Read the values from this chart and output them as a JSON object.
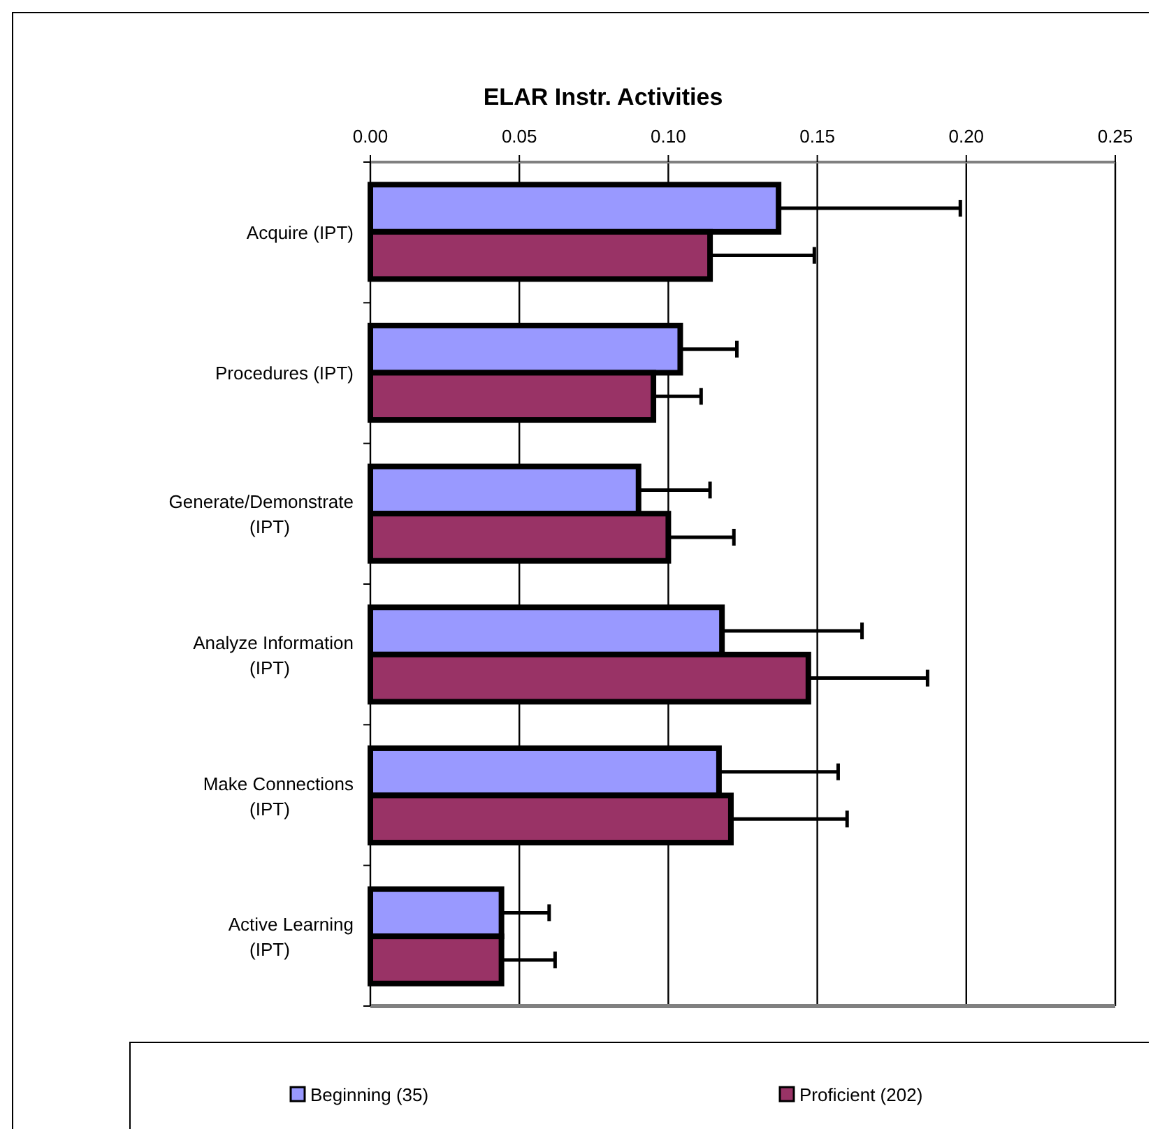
{
  "chart_data": {
    "type": "bar",
    "orientation": "horizontal",
    "title": "ELAR Instr. Activities",
    "categories": [
      "Acquire (IPT)",
      "Procedures (IPT)",
      "Generate/Demonstrate (IPT)",
      "Analyze Information (IPT)",
      "Make Connections (IPT)",
      "Active Learning (IPT)"
    ],
    "series": [
      {
        "name": "Beginning (35)",
        "color": "#9999ff",
        "values": [
          0.137,
          0.104,
          0.09,
          0.118,
          0.117,
          0.044
        ],
        "errors": [
          [
            0.137,
            0.198
          ],
          [
            0.104,
            0.123
          ],
          [
            0.09,
            0.114
          ],
          [
            0.118,
            0.165
          ],
          [
            0.117,
            0.157
          ],
          [
            0.044,
            0.06
          ]
        ]
      },
      {
        "name": "Proficient (202)",
        "color": "#993366",
        "values": [
          0.114,
          0.095,
          0.1,
          0.147,
          0.121,
          0.044
        ],
        "errors": [
          [
            0.114,
            0.149
          ],
          [
            0.095,
            0.111
          ],
          [
            0.1,
            0.122
          ],
          [
            0.147,
            0.187
          ],
          [
            0.121,
            0.16
          ],
          [
            0.044,
            0.062
          ]
        ]
      }
    ],
    "xlim": [
      0,
      0.25
    ],
    "xticks": [
      {
        "value": 0,
        "label": "0.00"
      },
      0.05,
      {
        "value": 0.1,
        "label": "0.10"
      },
      0.15,
      {
        "value": 0.2,
        "label": "0.20"
      },
      0.25
    ],
    "grid": "x",
    "legend": "bottom"
  }
}
